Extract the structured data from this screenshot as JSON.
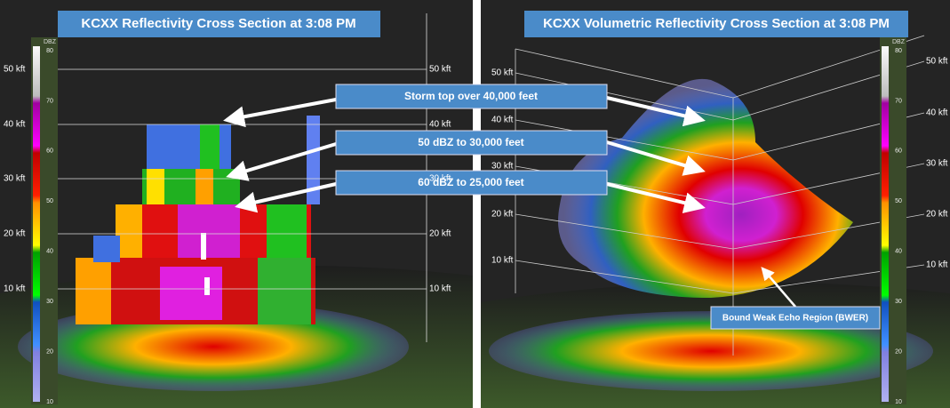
{
  "panels": [
    {
      "title": "KCXX Reflectivity Cross Section at 3:08 PM",
      "left_altitudes": [
        "50 kft",
        "40 kft",
        "30 kft",
        "20 kft",
        "10 kft"
      ],
      "right_altitudes": [
        "50 kft",
        "40 kft",
        "30 kft",
        "20 kft",
        "10 kft"
      ]
    },
    {
      "title": "KCXX Volumetric Reflectivity Cross Section at 3:08 PM",
      "left_altitudes": [
        "50 kft",
        "40 kft",
        "30 kft",
        "20 kft",
        "10 kft"
      ],
      "right_altitudes": [
        "50 kft",
        "40 kft",
        "30 kft",
        "20 kft",
        "10 kft"
      ]
    }
  ],
  "annotations": [
    "Storm top over 40,000 feet",
    "50 dBZ to 30,000 feet",
    "60 dBZ to 25,000 feet",
    "Bound Weak Echo Region (BWER)"
  ],
  "color_scale": {
    "unit": "DBZ",
    "labels": [
      "80",
      "70",
      "60",
      "50",
      "40",
      "30",
      "20",
      "10"
    ]
  }
}
